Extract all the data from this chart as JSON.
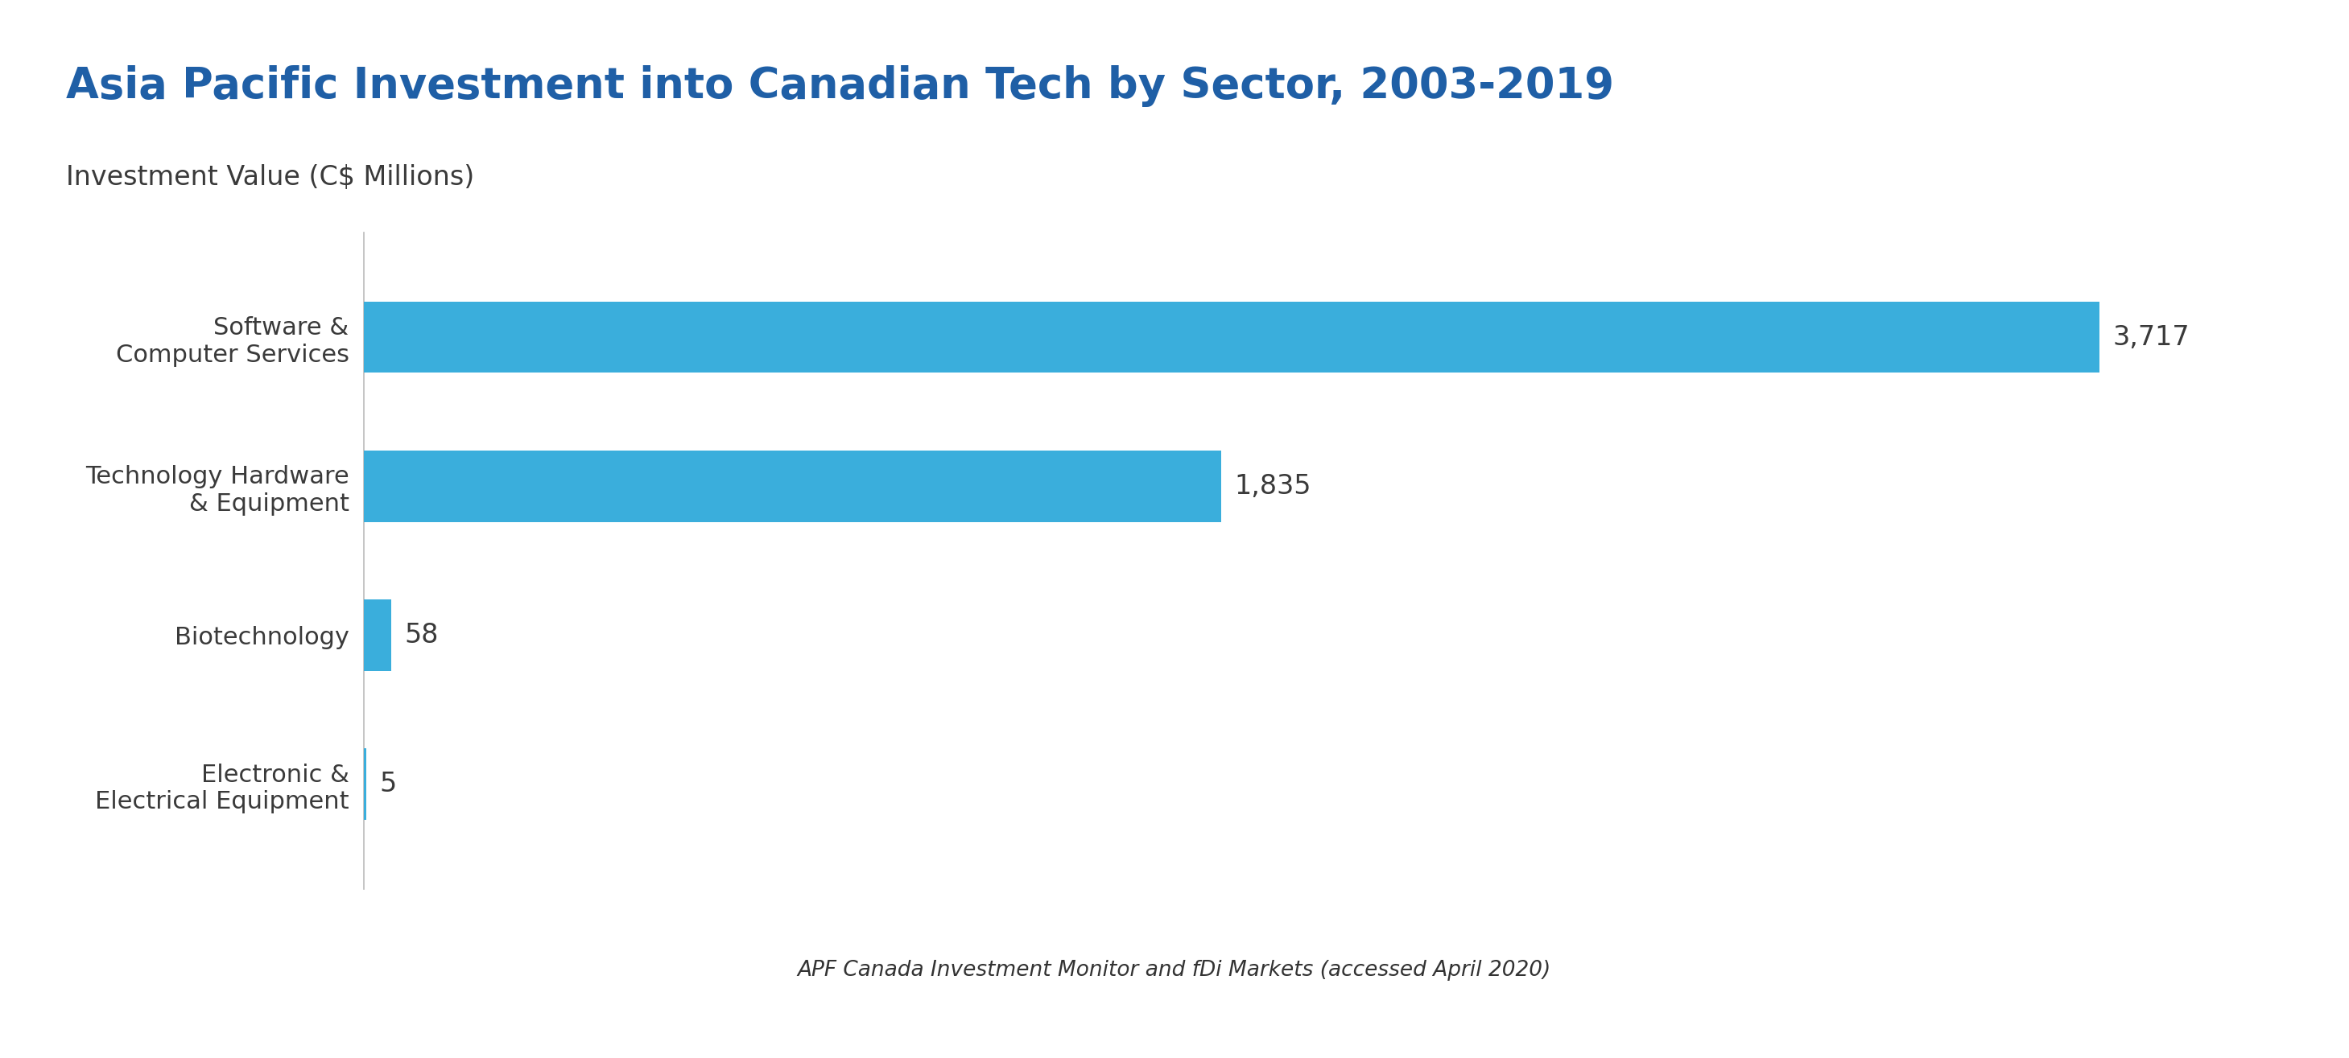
{
  "title": "Asia Pacific Investment into Canadian Tech by Sector, 2003-2019",
  "subtitle": "Investment Value (C$ Millions)",
  "categories": [
    "Software &\nComputer Services",
    "Technology Hardware\n& Equipment",
    "Biotechnology",
    "Electronic &\nElectrical Equipment"
  ],
  "values": [
    3717,
    1835,
    58,
    5
  ],
  "labels": [
    "3,717",
    "1,835",
    "58",
    "5"
  ],
  "bar_color": "#3aaedc",
  "title_color": "#1f5fa6",
  "subtitle_color": "#3a3a3a",
  "label_color": "#3a3a3a",
  "category_color": "#3a3a3a",
  "background_top": "#ddeef5",
  "background_chart": "#ffffff",
  "background_footer": "#e8e8e8",
  "footer_text": "APF Canada Investment Monitor and fDi Markets (accessed April 2020)",
  "footer_color": "#333333",
  "xlim": [
    0,
    4100
  ],
  "title_fontsize": 38,
  "subtitle_fontsize": 24,
  "label_fontsize": 24,
  "category_fontsize": 22,
  "footer_fontsize": 19
}
